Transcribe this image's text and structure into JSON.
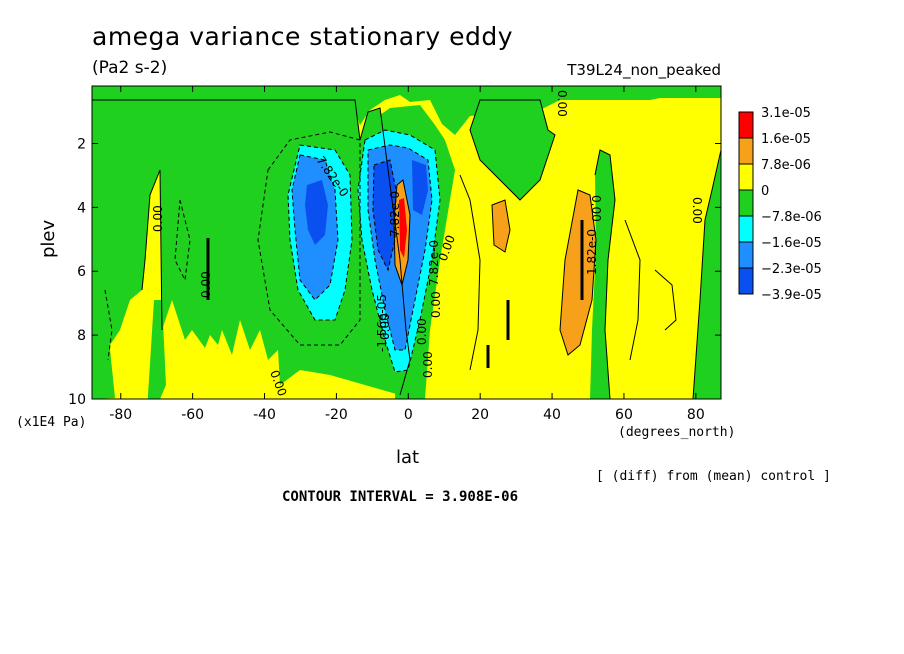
{
  "chart_data": {
    "type": "heatmap",
    "title": "amega variance stationary eddy",
    "units": "(Pa2 s-2)",
    "run_label": "T39L24_non_peaked",
    "xlabel": "lat",
    "x_units": "(degrees_north)",
    "ylabel": "plev",
    "y_units": "(x1E4 Pa)",
    "xlim": [
      -88,
      87
    ],
    "ylim": [
      10,
      0.2
    ],
    "x_ticks": [
      -80,
      -60,
      -40,
      -20,
      0,
      20,
      40,
      60,
      80
    ],
    "y_ticks": [
      2,
      4,
      6,
      8,
      10
    ],
    "note": "[ (diff) from (mean) control ]",
    "contour_interval": "CONTOUR INTERVAL = 3.908E-06",
    "legend": [
      {
        "label": "3.1e-05",
        "color": "#ff0000"
      },
      {
        "label": "1.6e-05",
        "color": "#f7a01a"
      },
      {
        "label": "7.8e-06",
        "color": "#ffff00"
      },
      {
        "label": "0",
        "color": "#1fd01f"
      },
      {
        "label": "−7.8e-06",
        "color": "#00ffff"
      },
      {
        "label": "−1.6e-05",
        "color": "#1f8fff"
      },
      {
        "label": "−2.3e-05",
        "color": "#0a50f0"
      },
      {
        "label": "−3.9e-05",
        "color": ""
      }
    ],
    "contour_labels": [
      "0.00",
      "0.00",
      "0.00",
      "0.00",
      "0.00",
      "0.00",
      "0.00",
      "0.00",
      "0.00",
      "0.00",
      "0.00",
      "7.82e-0",
      "7.82e-0",
      "-1.56e-05",
      "7.82e-0",
      "1.82e-0"
    ],
    "regions": {
      "negative_core_sh": {
        "lat": [
          -28,
          -22
        ],
        "plev": [
          3.5,
          5.5
        ],
        "level": -2.3e-05
      },
      "negative_equatorial": {
        "lat": [
          -10,
          6
        ],
        "plev": [
          2.2,
          9.0
        ],
        "level": -1.6e-05
      },
      "positive_equator_spike": {
        "lat": [
          -3,
          1
        ],
        "plev": [
          3.2,
          6.0
        ],
        "level": 3.1e-05
      },
      "positive_nh": {
        "lat": [
          44,
          52
        ],
        "plev": [
          3.5,
          8.5
        ],
        "level": 1.6e-05
      }
    }
  }
}
